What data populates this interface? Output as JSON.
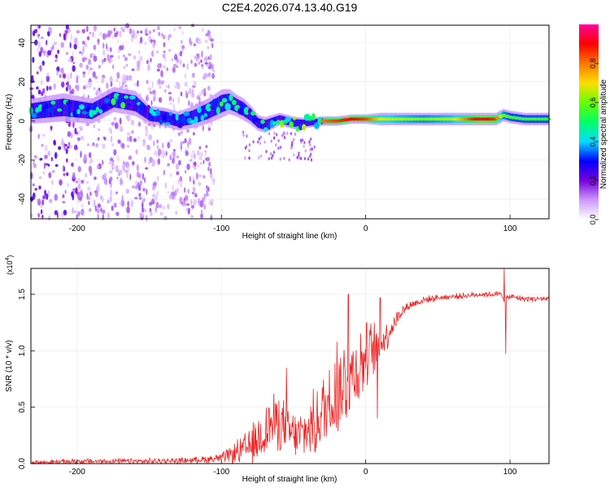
{
  "title": "C2E4.2026.074.13.40.G19",
  "chart_data": [
    {
      "type": "heatmap",
      "panel": "spectrogram",
      "xlabel": "Height of straight line (km)",
      "ylabel": "Frequency (Hz)",
      "xlim": [
        -232,
        127
      ],
      "ylim": [
        -50,
        49
      ],
      "xticks": [
        -200,
        -100,
        0,
        100
      ],
      "xtick_labels": [
        "-200",
        "-100",
        "0",
        "100"
      ],
      "yticks": [
        40,
        20,
        0,
        -20,
        -40
      ],
      "ytick_labels": [
        "40",
        "20",
        "0",
        "-20",
        "-40"
      ],
      "colorbar": {
        "label": "Normalized spectral amplitude",
        "range": [
          0,
          1
        ],
        "ticks": [
          0,
          0.2,
          0.4,
          0.6,
          0.8
        ],
        "tick_labels": [
          "0.0",
          "0.2",
          "0.4",
          "0.6",
          "0.8"
        ],
        "colors": [
          "#ffffff",
          "#cc99ff",
          "#7700dd",
          "#0000ff",
          "#00ddff",
          "#00ff66",
          "#66ff00",
          "#ffdd00",
          "#ff7700",
          "#ff0000",
          "#ff0099"
        ]
      },
      "ridge": {
        "x": [
          -232,
          -210,
          -190,
          -175,
          -160,
          -150,
          -140,
          -130,
          -120,
          -110,
          -100,
          -95,
          -90,
          -85,
          -80,
          -75,
          -70,
          -60,
          -50,
          -40,
          -30,
          -20,
          -10,
          0,
          10,
          20,
          40,
          60,
          80,
          90,
          95,
          100,
          110,
          127
        ],
        "y": [
          5,
          7,
          5,
          11,
          9,
          3,
          2,
          0,
          2,
          5,
          9,
          10,
          8,
          6,
          3,
          -1,
          -2,
          1,
          -1,
          -1,
          0,
          0,
          1,
          1,
          1,
          1,
          1,
          1,
          1,
          1,
          3,
          2,
          1,
          1
        ],
        "amplitude": [
          0.55,
          0.6,
          0.55,
          0.7,
          0.6,
          0.5,
          0.6,
          0.5,
          0.55,
          0.6,
          0.7,
          0.65,
          0.6,
          0.55,
          0.55,
          0.6,
          0.65,
          0.7,
          0.75,
          0.8,
          0.8,
          0.85,
          0.9,
          0.85,
          0.7,
          0.65,
          0.6,
          0.65,
          0.95,
          0.85,
          0.6,
          0.55,
          0.55,
          0.55
        ],
        "width_hz": [
          8,
          9,
          8,
          8,
          8,
          6,
          6,
          6,
          7,
          8,
          9,
          8,
          7,
          7,
          6,
          5,
          5,
          4,
          4,
          3,
          3,
          3,
          3,
          3,
          4,
          4,
          4,
          4,
          4,
          4,
          4,
          4,
          4,
          4
        ]
      }
    },
    {
      "type": "line",
      "panel": "snr",
      "xlabel": "Height of straight line (km)",
      "ylabel": "SNR (10 * v/v)",
      "scale_label": "(x10",
      "scale_exponent": "4",
      "color": "#ee2222",
      "xlim": [
        -232,
        127
      ],
      "ylim": [
        0,
        1.73
      ],
      "xticks": [
        -200,
        -100,
        0,
        100
      ],
      "xtick_labels": [
        "-200",
        "-100",
        "0",
        "100"
      ],
      "yticks": [
        0,
        0.5,
        1.0,
        1.5
      ],
      "ytick_labels": [
        "0.0",
        "0.5",
        "1.0",
        "1.5"
      ],
      "envelope": {
        "x": [
          -232,
          -200,
          -150,
          -120,
          -110,
          -100,
          -95,
          -90,
          -85,
          -80,
          -75,
          -70,
          -65,
          -60,
          -55,
          -50,
          -45,
          -40,
          -35,
          -30,
          -25,
          -20,
          -15,
          -10,
          -5,
          0,
          5,
          10,
          15,
          20,
          25,
          30,
          40,
          50,
          60,
          80,
          94,
          96,
          100,
          110,
          127
        ],
        "base": [
          0.01,
          0.02,
          0.02,
          0.03,
          0.04,
          0.05,
          0.07,
          0.1,
          0.12,
          0.15,
          0.2,
          0.3,
          0.35,
          0.38,
          0.3,
          0.25,
          0.25,
          0.3,
          0.35,
          0.45,
          0.55,
          0.65,
          0.7,
          0.8,
          0.85,
          0.95,
          1.0,
          1.05,
          1.15,
          1.25,
          1.35,
          1.4,
          1.45,
          1.47,
          1.48,
          1.5,
          1.5,
          1.45,
          1.48,
          1.46,
          1.46
        ],
        "noise": [
          0.02,
          0.03,
          0.03,
          0.03,
          0.04,
          0.05,
          0.08,
          0.12,
          0.15,
          0.2,
          0.25,
          0.3,
          0.3,
          0.3,
          0.25,
          0.25,
          0.25,
          0.3,
          0.35,
          0.4,
          0.45,
          0.5,
          0.5,
          0.45,
          0.4,
          0.35,
          0.3,
          0.25,
          0.15,
          0.1,
          0.06,
          0.05,
          0.04,
          0.03,
          0.03,
          0.03,
          0.03,
          0.03,
          0.03,
          0.03,
          0.03
        ]
      },
      "spikes": [
        {
          "x": -55,
          "y": 0.85
        },
        {
          "x": -20,
          "y": 1.08
        },
        {
          "x": -12,
          "y": 1.5
        },
        {
          "x": 8,
          "y": 0.4
        },
        {
          "x": 10,
          "y": 1.47
        },
        {
          "x": 96,
          "y": 1.73
        },
        {
          "x": 97,
          "y": 0.97
        }
      ]
    }
  ]
}
